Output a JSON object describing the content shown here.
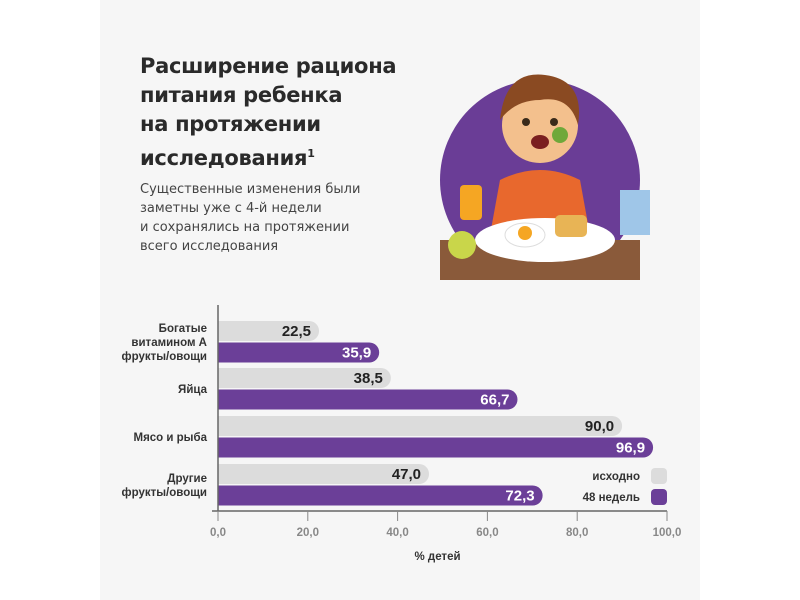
{
  "title_lines": [
    "Расширение рациона",
    "питания ребенка",
    "на протяжении",
    "исследования"
  ],
  "title_superscript": "1",
  "subtitle_lines": [
    "Существенные изменения были",
    "заметны уже с 4-й недели",
    "и сохранялись на протяжении",
    "всего исследования"
  ],
  "colors": {
    "baseline": "#dcdcdc",
    "week48": "#6b3f98",
    "accent_circle": "#6a3d96"
  },
  "chart_data": {
    "type": "bar",
    "orientation": "horizontal",
    "categories": [
      [
        "Богатые",
        "витамином А",
        "фрукты/овощи"
      ],
      [
        "Яйца"
      ],
      [
        "Мясо и рыба"
      ],
      [
        "Другие",
        "фрукты/овощи"
      ]
    ],
    "series": [
      {
        "name": "исходно",
        "values": [
          22.5,
          38.5,
          90.0,
          47.0
        ],
        "labels": [
          "22,5",
          "38,5",
          "90,0",
          "47,0"
        ]
      },
      {
        "name": "48 недель",
        "values": [
          35.9,
          66.7,
          96.9,
          72.3
        ],
        "labels": [
          "35,9",
          "66,7",
          "96,9",
          "72,3"
        ]
      }
    ],
    "xlabel": "% детей",
    "xlim": [
      0,
      100
    ],
    "xticks": [
      0,
      20,
      40,
      60,
      80,
      100
    ],
    "xtick_labels": [
      "0,0",
      "20,0",
      "40,0",
      "60,0",
      "80,0",
      "100,0"
    ],
    "legend_position": "bottom-right",
    "grid": false
  }
}
